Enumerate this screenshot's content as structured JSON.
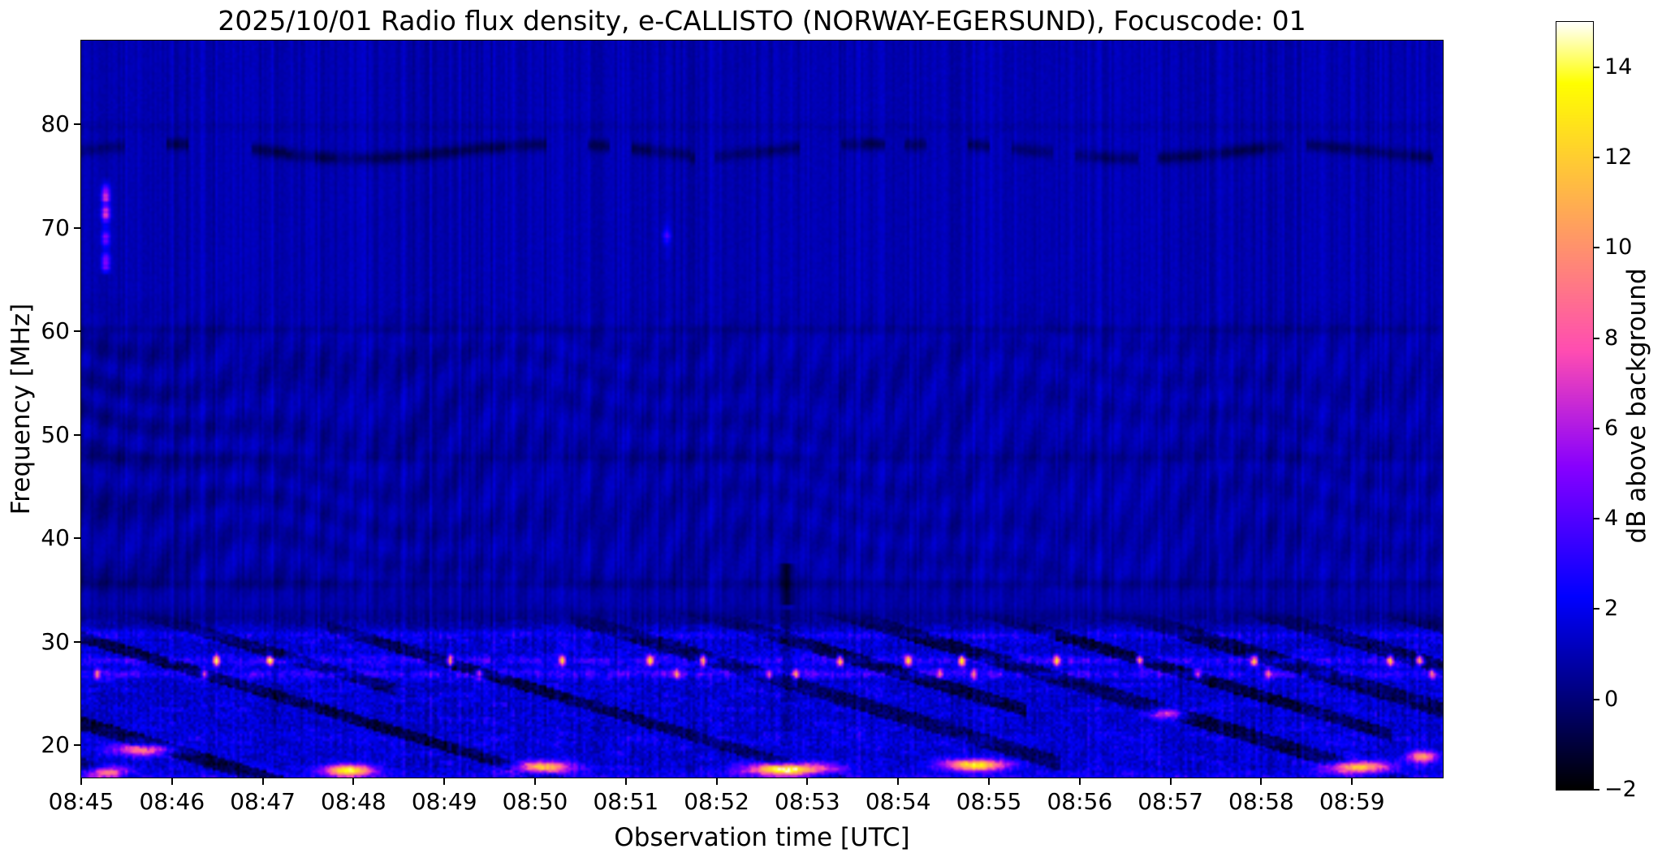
{
  "chart_data": {
    "type": "heatmap",
    "title": "2025/10/01  Radio flux density, e-CALLISTO (NORWAY-EGERSUND), Focuscode: 01",
    "xlabel": "Observation time [UTC]",
    "ylabel": "Frequency [MHz]",
    "x_tick_labels": [
      "08:45",
      "08:46",
      "08:47",
      "08:48",
      "08:49",
      "08:50",
      "08:51",
      "08:52",
      "08:53",
      "08:54",
      "08:55",
      "08:56",
      "08:57",
      "08:58",
      "08:59"
    ],
    "x_span_minutes": 15,
    "x_start": "08:45",
    "x_end": "09:00",
    "y_ticks": [
      20,
      30,
      40,
      50,
      60,
      70,
      80
    ],
    "y_tick_labels": [
      "20",
      "30",
      "40",
      "50",
      "60",
      "70",
      "80"
    ],
    "y_range_mhz": [
      16.9,
      88.1
    ],
    "grid": false,
    "colorbar": {
      "label": "dB above background",
      "tick_values": [
        -2,
        0,
        2,
        4,
        6,
        8,
        10,
        12,
        14
      ],
      "tick_labels": [
        "−2",
        "0",
        "2",
        "4",
        "6",
        "8",
        "10",
        "12",
        "14"
      ],
      "range_db": [
        -2,
        15
      ],
      "colormap": "gnuplot2"
    },
    "features": {
      "bursts": [
        {
          "time_min": 0.27,
          "f_center": 70.3,
          "f_lo": 65.5,
          "f_hi": 75.0,
          "peak_db": 9,
          "cores_mhz": [
            73.2,
            71.4,
            69.0,
            66.6
          ],
          "core_db": [
            9,
            6.5,
            5,
            6.5
          ],
          "note": "narrowband vertical burst near 08:45:16, 66-74 MHz"
        },
        {
          "time_min": 6.45,
          "f_center": 69.3,
          "f_lo": 67.0,
          "f_hi": 71.5,
          "peak_db": 3.2,
          "cores_mhz": [
            69.3
          ],
          "core_db": [
            3.2
          ],
          "note": "faint vertical trace near 08:51:27"
        }
      ],
      "rfi_rows": [
        {
          "freq_mhz": 28.2,
          "base_db": 2.2,
          "spike_db": 11
        },
        {
          "freq_mhz": 26.9,
          "base_db": 2.6,
          "spike_db": 7
        }
      ],
      "hot_blobs": [
        {
          "t0_min": 0.0,
          "t1_min": 0.6,
          "freq_mhz": 17.4,
          "peak_db": 9
        },
        {
          "t0_min": 0.2,
          "t1_min": 1.2,
          "freq_mhz": 19.6,
          "peak_db": 8
        },
        {
          "t0_min": 2.55,
          "t1_min": 3.35,
          "freq_mhz": 17.6,
          "peak_db": 12
        },
        {
          "t0_min": 4.6,
          "t1_min": 5.55,
          "freq_mhz": 17.9,
          "peak_db": 11
        },
        {
          "t0_min": 7.15,
          "t1_min": 8.45,
          "freq_mhz": 17.7,
          "peak_db": 14
        },
        {
          "t0_min": 9.35,
          "t1_min": 10.35,
          "freq_mhz": 18.1,
          "peak_db": 12
        },
        {
          "t0_min": 11.7,
          "t1_min": 12.25,
          "freq_mhz": 23.1,
          "peak_db": 7
        },
        {
          "t0_min": 13.6,
          "t1_min": 14.55,
          "freq_mhz": 17.9,
          "peak_db": 12
        },
        {
          "t0_min": 14.55,
          "t1_min": 15.0,
          "freq_mhz": 18.9,
          "peak_db": 9
        }
      ],
      "dark_streaks": {
        "region_below_mhz": 33,
        "slope_note": "recurring dark diagonal lanes drifting down in frequency with time"
      },
      "dashed_dark_band_mhz": 77.5,
      "dark_lines_mhz": [
        60.2,
        47.8,
        35.6,
        32.3
      ],
      "bright_line_mhz": 30.7,
      "wavy_band_region_mhz": [
        34,
        62
      ]
    }
  }
}
